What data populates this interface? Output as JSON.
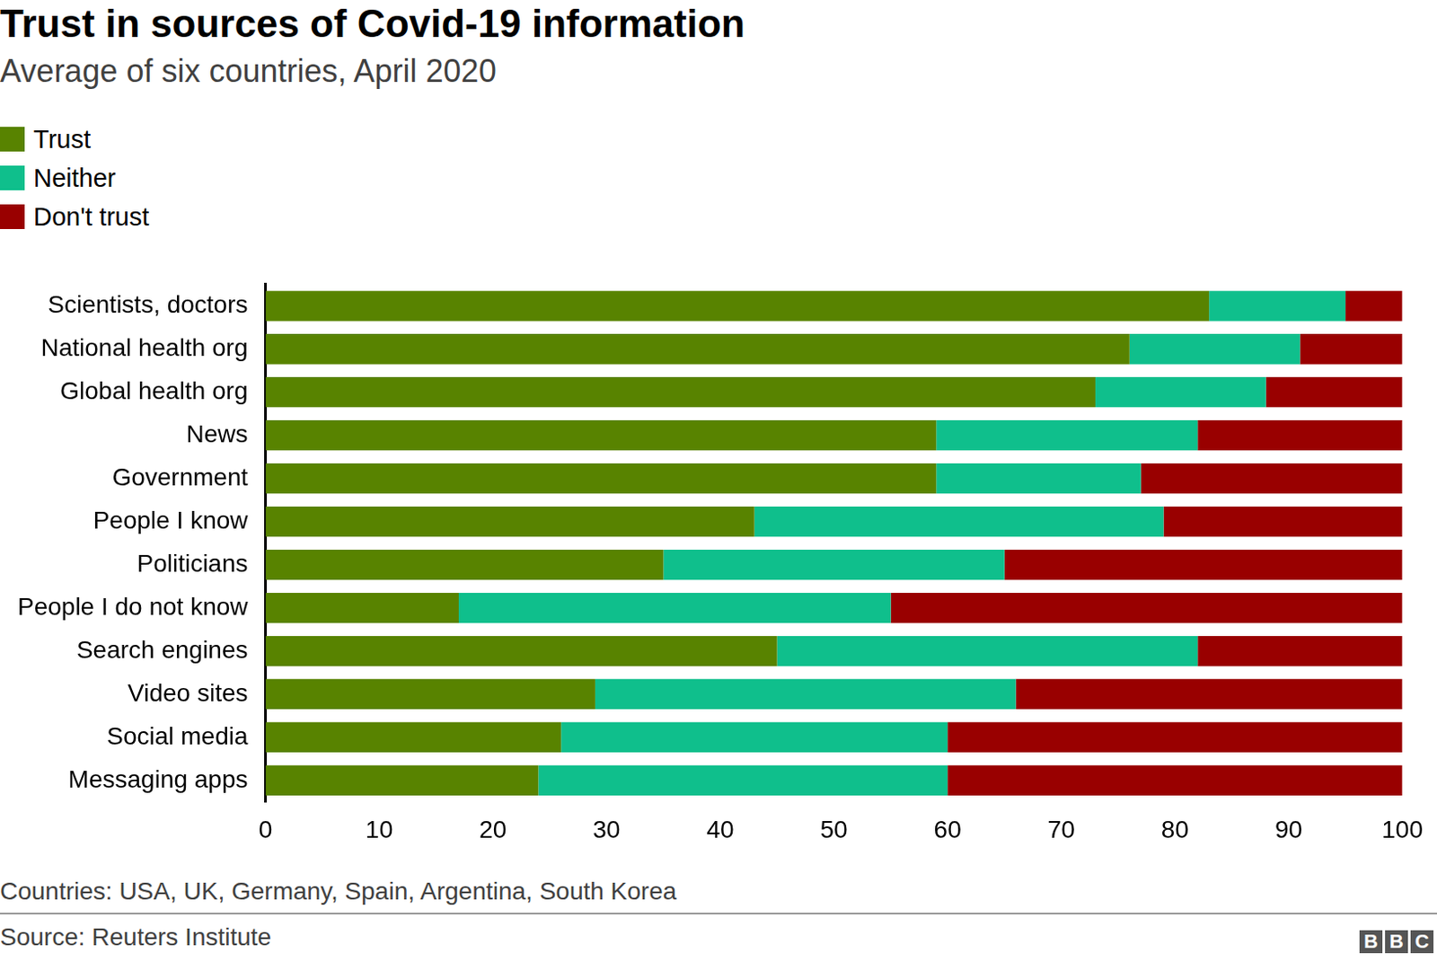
{
  "chart_data": {
    "type": "bar",
    "title": "Trust in sources of Covid-19 information",
    "subtitle": "Average of six countries, April 2020",
    "orientation": "horizontal",
    "stacked": true,
    "grid": false,
    "legend": "top-left",
    "categories": [
      "Scientists, doctors",
      "National health org",
      "Global health org",
      "News",
      "Government",
      "People I know",
      "Politicians",
      "People I do not know",
      "Search engines",
      "Video sites",
      "Social media",
      "Messaging apps"
    ],
    "series": [
      {
        "name": "Trust",
        "color": "#588300",
        "values": [
          83,
          76,
          73,
          59,
          59,
          43,
          35,
          17,
          45,
          29,
          26,
          24
        ]
      },
      {
        "name": "Neither",
        "color": "#0fbf8c",
        "values": [
          12,
          15,
          15,
          23,
          18,
          36,
          30,
          38,
          37,
          37,
          34,
          36
        ]
      },
      {
        "name": "Don't trust",
        "color": "#990000",
        "values": [
          5,
          9,
          12,
          18,
          23,
          21,
          35,
          45,
          18,
          34,
          40,
          40
        ]
      }
    ],
    "xlim": [
      0,
      100
    ],
    "xticks": [
      0,
      10,
      20,
      30,
      40,
      50,
      60,
      70,
      80,
      90,
      100
    ],
    "note": "Countries: USA, UK, Germany, Spain, Argentina, South Korea",
    "source": "Source: Reuters Institute",
    "logo": "BBC"
  }
}
